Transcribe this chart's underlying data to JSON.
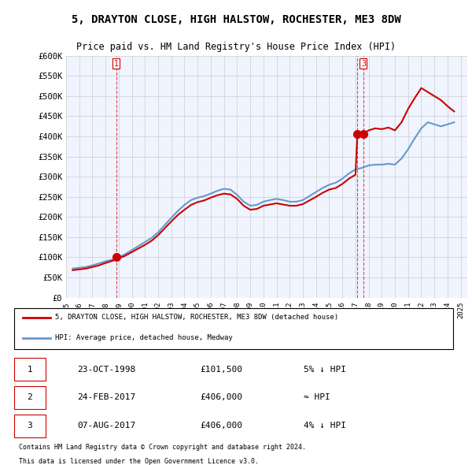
{
  "title1": "5, DRAYTON CLOSE, HIGH HALSTOW, ROCHESTER, ME3 8DW",
  "title2": "Price paid vs. HM Land Registry's House Price Index (HPI)",
  "ylabel_ticks": [
    "£0",
    "£50K",
    "£100K",
    "£150K",
    "£200K",
    "£250K",
    "£300K",
    "£350K",
    "£400K",
    "£450K",
    "£500K",
    "£550K",
    "£600K"
  ],
  "ylim": [
    0,
    600000
  ],
  "xlim_start": 1995.0,
  "xlim_end": 2025.5,
  "legend_line1": "5, DRAYTON CLOSE, HIGH HALSTOW, ROCHESTER, ME3 8DW (detached house)",
  "legend_line2": "HPI: Average price, detached house, Medway",
  "transaction1": {
    "num": 1,
    "date": "23-OCT-1998",
    "price": 101500,
    "note": "5% ↓ HPI",
    "x": 1998.8
  },
  "transaction2": {
    "num": 2,
    "date": "24-FEB-2017",
    "price": 406000,
    "note": "≈ HPI",
    "x": 2017.15
  },
  "transaction3": {
    "num": 3,
    "date": "07-AUG-2017",
    "price": 406000,
    "note": "4% ↓ HPI",
    "x": 2017.6
  },
  "footer1": "Contains HM Land Registry data © Crown copyright and database right 2024.",
  "footer2": "This data is licensed under the Open Government Licence v3.0.",
  "red_color": "#cc0000",
  "blue_color": "#6699cc",
  "bg_color": "#ffffff",
  "grid_color": "#cccccc",
  "hpi_data": {
    "years": [
      1995.5,
      1996.0,
      1996.5,
      1997.0,
      1997.5,
      1998.0,
      1998.5,
      1999.0,
      1999.5,
      2000.0,
      2000.5,
      2001.0,
      2001.5,
      2002.0,
      2002.5,
      2003.0,
      2003.5,
      2004.0,
      2004.5,
      2005.0,
      2005.5,
      2006.0,
      2006.5,
      2007.0,
      2007.5,
      2008.0,
      2008.5,
      2009.0,
      2009.5,
      2010.0,
      2010.5,
      2011.0,
      2011.5,
      2012.0,
      2012.5,
      2013.0,
      2013.5,
      2014.0,
      2014.5,
      2015.0,
      2015.5,
      2016.0,
      2016.5,
      2017.0,
      2017.5,
      2018.0,
      2018.5,
      2019.0,
      2019.5,
      2020.0,
      2020.5,
      2021.0,
      2021.5,
      2022.0,
      2022.5,
      2023.0,
      2023.5,
      2024.0,
      2024.5
    ],
    "values": [
      72000,
      74000,
      76000,
      80000,
      85000,
      90000,
      94000,
      100000,
      108000,
      118000,
      128000,
      138000,
      148000,
      162000,
      180000,
      198000,
      215000,
      230000,
      242000,
      248000,
      252000,
      258000,
      265000,
      270000,
      268000,
      255000,
      238000,
      228000,
      230000,
      238000,
      242000,
      245000,
      242000,
      238000,
      238000,
      242000,
      252000,
      262000,
      272000,
      280000,
      285000,
      295000,
      308000,
      318000,
      322000,
      328000,
      330000,
      330000,
      332000,
      330000,
      345000,
      368000,
      395000,
      420000,
      435000,
      430000,
      425000,
      430000,
      435000
    ]
  },
  "price_data": {
    "years": [
      1995.5,
      1996.0,
      1996.5,
      1997.0,
      1997.5,
      1998.0,
      1998.5,
      1999.0,
      1999.5,
      2000.0,
      2000.5,
      2001.0,
      2001.5,
      2002.0,
      2002.5,
      2003.0,
      2003.5,
      2004.0,
      2004.5,
      2005.0,
      2005.5,
      2006.0,
      2006.5,
      2007.0,
      2007.5,
      2008.0,
      2008.5,
      2009.0,
      2009.5,
      2010.0,
      2010.5,
      2011.0,
      2011.5,
      2012.0,
      2012.5,
      2013.0,
      2013.5,
      2014.0,
      2014.5,
      2015.0,
      2015.5,
      2016.0,
      2016.5,
      2017.0,
      2017.15,
      2017.5,
      2017.6,
      2018.0,
      2018.5,
      2019.0,
      2019.5,
      2020.0,
      2020.5,
      2021.0,
      2021.5,
      2022.0,
      2022.5,
      2023.0,
      2023.5,
      2024.0,
      2024.5
    ],
    "values": [
      68000,
      70000,
      72000,
      76000,
      80000,
      86000,
      91000,
      97000,
      104000,
      113000,
      122000,
      131000,
      141000,
      155000,
      172000,
      189000,
      205000,
      218000,
      230000,
      237000,
      241000,
      248000,
      254000,
      258000,
      256000,
      245000,
      228000,
      218000,
      220000,
      228000,
      231000,
      234000,
      231000,
      228000,
      228000,
      232000,
      241000,
      250000,
      260000,
      268000,
      272000,
      282000,
      295000,
      305000,
      406000,
      410000,
      406000,
      415000,
      420000,
      418000,
      422000,
      415000,
      435000,
      468000,
      495000,
      520000,
      510000,
      500000,
      490000,
      475000,
      462000
    ]
  }
}
